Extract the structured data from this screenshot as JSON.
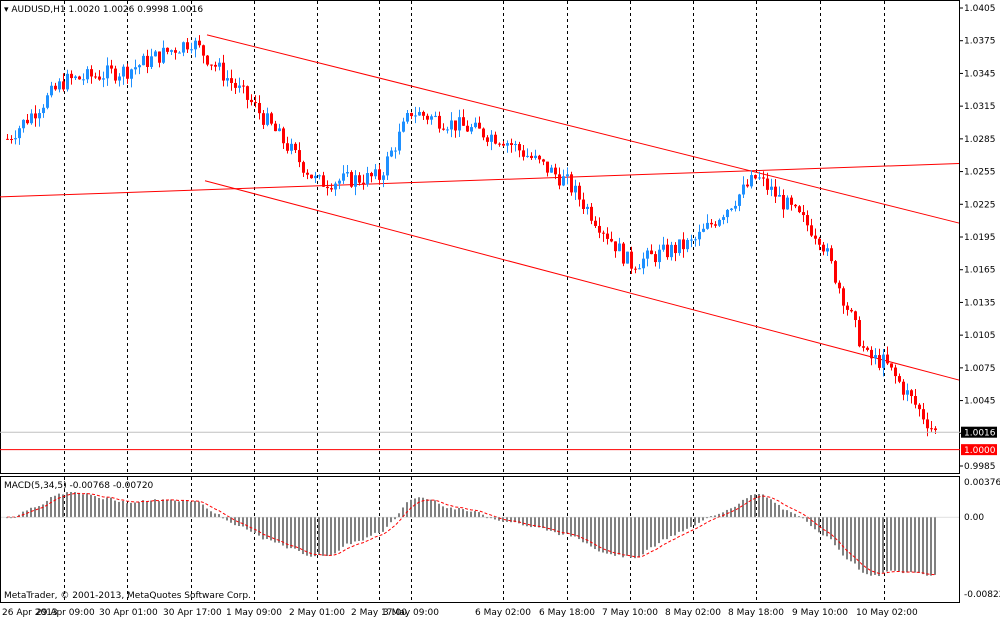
{
  "header": {
    "symbol": "AUDUSD,H1",
    "ohlc": "1.0020 1.0026 0.9998 1.0016"
  },
  "macd_header": "MACD(5,34,5) -0.00768 -0.00720",
  "copyright": "MetaTrader, © 2001-2013, MetaQuotes Software Corp.",
  "price_labels": [
    "1.0405",
    "1.0375",
    "1.0345",
    "1.0315",
    "1.0285",
    "1.0255",
    "1.0225",
    "1.0195",
    "1.0165",
    "1.0135",
    "1.0105",
    "1.0075",
    "1.0045",
    "1.0015",
    "0.9985"
  ],
  "current_price": "1.0016",
  "level_price": "1.0000",
  "macd_labels": [
    "0.00376",
    "0.00",
    "-0.00822"
  ],
  "time_labels": [
    "26 Apr 2013",
    "29 Apr 09:00",
    "30 Apr 01:00",
    "30 Apr 17:00",
    "1 May 09:00",
    "2 May 01:00",
    "2 May 17:00",
    "3 May 09:00",
    "6 May 02:00",
    "6 May 18:00",
    "7 May 10:00",
    "8 May 02:00",
    "8 May 18:00",
    "9 May 10:00",
    "10 May 02:00"
  ],
  "colors": {
    "up": "#1e90ff",
    "down": "#ff0000",
    "line": "#ff0000",
    "grid": "#000000",
    "hist": "#808080",
    "signal": "#ff0000"
  },
  "chart_data": {
    "type": "candlestick",
    "symbol": "AUDUSD",
    "timeframe": "H1",
    "price_axis": [
      0.9985,
      1.0405
    ],
    "current_price": 1.0016,
    "horizontal_level": 1.0,
    "trend_lines": [
      {
        "from_time": "30 Apr 17:00",
        "from_price": 1.0384,
        "to_time": "10 May 02:00",
        "to_price": 1.0225
      },
      {
        "from_time": "30 Apr 17:00",
        "from_price": 1.025,
        "to_time": "10 May 02:00",
        "to_price": 1.0082
      },
      {
        "from_time": "26 Apr 2013",
        "from_price": 1.0232,
        "to_time": "10 May 02:00",
        "to_price": 1.026
      }
    ],
    "macd": {
      "params": "5,34,5",
      "main": -0.00768,
      "signal": -0.0072,
      "axis": [
        -0.00822,
        0.00376
      ]
    },
    "path_points": [
      [
        "26 Apr 2013",
        1.0285
      ],
      [
        "29 Apr 09:00",
        1.0338
      ],
      [
        "30 Apr 01:00",
        1.0348
      ],
      [
        "30 Apr 17:00",
        1.0375
      ],
      [
        "1 May 09:00",
        1.0315
      ],
      [
        "2 May 01:00",
        1.0245
      ],
      [
        "2 May 17:00",
        1.025
      ],
      [
        "3 May 09:00",
        1.031
      ],
      [
        "6 May 02:00",
        1.0285
      ],
      [
        "6 May 18:00",
        1.0245
      ],
      [
        "7 May 10:00",
        1.017
      ],
      [
        "8 May 02:00",
        1.019
      ],
      [
        "8 May 18:00",
        1.025
      ],
      [
        "9 May 10:00",
        1.0195
      ],
      [
        "9 May 18:00",
        1.0085
      ],
      [
        "10 May 02:00",
        1.008
      ],
      [
        "10 May 06:00",
        1.0016
      ]
    ]
  }
}
